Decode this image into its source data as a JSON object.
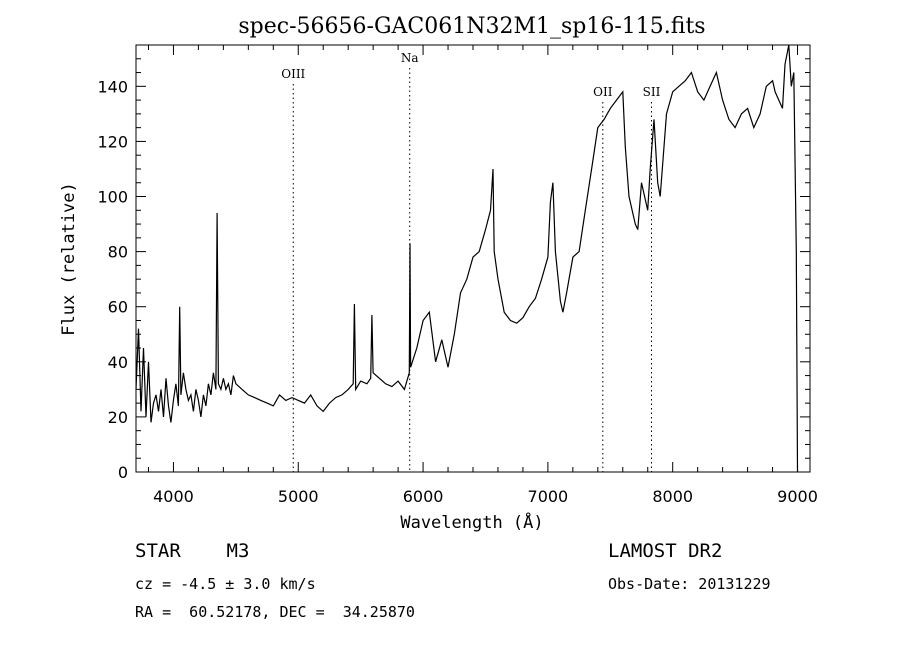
{
  "chart_data": {
    "type": "line",
    "title": "spec-56656-GAC061N32M1_sp16-115.fits",
    "xlabel": "Wavelength (Å)",
    "ylabel": "Flux (relative)",
    "xlim": [
      3700,
      9100
    ],
    "ylim": [
      0,
      155
    ],
    "x_ticks": [
      4000,
      5000,
      6000,
      7000,
      8000,
      9000
    ],
    "y_ticks": [
      0,
      20,
      40,
      60,
      80,
      100,
      120,
      140
    ],
    "line_color": "#000000",
    "series": [
      {
        "x": [
          3700,
          3720,
          3740,
          3760,
          3780,
          3800,
          3820,
          3840,
          3860,
          3880,
          3900,
          3920,
          3940,
          3960,
          3980,
          4000,
          4020,
          4040,
          4050,
          4060,
          4080,
          4100,
          4120,
          4140,
          4160,
          4180,
          4200,
          4220,
          4240,
          4260,
          4280,
          4300,
          4320,
          4340,
          4350,
          4360,
          4380,
          4400,
          4420,
          4440,
          4460,
          4480,
          4500,
          4550,
          4600,
          4650,
          4700,
          4750,
          4800,
          4850,
          4900,
          4950,
          5000,
          5050,
          5100,
          5150,
          5200,
          5250,
          5300,
          5350,
          5400,
          5440,
          5450,
          5460,
          5500,
          5550,
          5580,
          5590,
          5600,
          5650,
          5700,
          5750,
          5800,
          5850,
          5890,
          5895,
          5900,
          5950,
          6000,
          6050,
          6100,
          6150,
          6200,
          6250,
          6300,
          6350,
          6400,
          6450,
          6500,
          6540,
          6560,
          6570,
          6600,
          6650,
          6700,
          6750,
          6800,
          6850,
          6900,
          6950,
          7000,
          7020,
          7040,
          7060,
          7100,
          7120,
          7150,
          7200,
          7250,
          7300,
          7350,
          7400,
          7450,
          7500,
          7550,
          7600,
          7620,
          7650,
          7700,
          7720,
          7750,
          7800,
          7820,
          7850,
          7880,
          7900,
          7950,
          8000,
          8050,
          8100,
          8150,
          8200,
          8250,
          8300,
          8350,
          8400,
          8450,
          8500,
          8550,
          8600,
          8650,
          8700,
          8750,
          8800,
          8820,
          8850,
          8880,
          8900,
          8930,
          8950,
          8970,
          8990,
          9000
        ],
        "y": [
          30,
          52,
          22,
          45,
          20,
          40,
          18,
          25,
          28,
          22,
          30,
          20,
          34,
          24,
          18,
          26,
          32,
          24,
          60,
          28,
          36,
          30,
          26,
          28,
          22,
          30,
          26,
          20,
          28,
          24,
          32,
          28,
          36,
          30,
          94,
          32,
          30,
          34,
          30,
          32,
          28,
          35,
          32,
          30,
          28,
          27,
          26,
          25,
          24,
          28,
          26,
          27,
          26,
          25,
          28,
          24,
          22,
          25,
          27,
          28,
          30,
          32,
          61,
          30,
          33,
          32,
          34,
          57,
          36,
          34,
          32,
          31,
          33,
          30,
          36,
          83,
          38,
          45,
          55,
          58,
          40,
          48,
          38,
          50,
          65,
          70,
          78,
          80,
          88,
          95,
          110,
          80,
          70,
          58,
          55,
          54,
          56,
          60,
          63,
          70,
          78,
          98,
          105,
          80,
          62,
          58,
          65,
          78,
          80,
          95,
          110,
          125,
          128,
          132,
          135,
          138,
          118,
          100,
          90,
          88,
          105,
          95,
          110,
          128,
          105,
          100,
          130,
          138,
          140,
          142,
          145,
          138,
          135,
          140,
          145,
          135,
          128,
          125,
          130,
          132,
          125,
          130,
          140,
          142,
          138,
          135,
          132,
          148,
          155,
          140,
          145,
          80,
          0
        ]
      }
    ],
    "annotations": [
      {
        "label": "OIII",
        "x": 4960
      },
      {
        "label": "Na",
        "x": 5893
      },
      {
        "label": "OII",
        "x": 7440
      },
      {
        "label": "SII",
        "x": 7830
      }
    ]
  },
  "info": {
    "object_type": "STAR",
    "subclass": "M3",
    "survey": "LAMOST DR2",
    "cz": "cz = -4.5 ± 3.0 km/s",
    "obs_date": "Obs-Date: 20131229",
    "coords": "RA =  60.52178, DEC =  34.25870"
  }
}
